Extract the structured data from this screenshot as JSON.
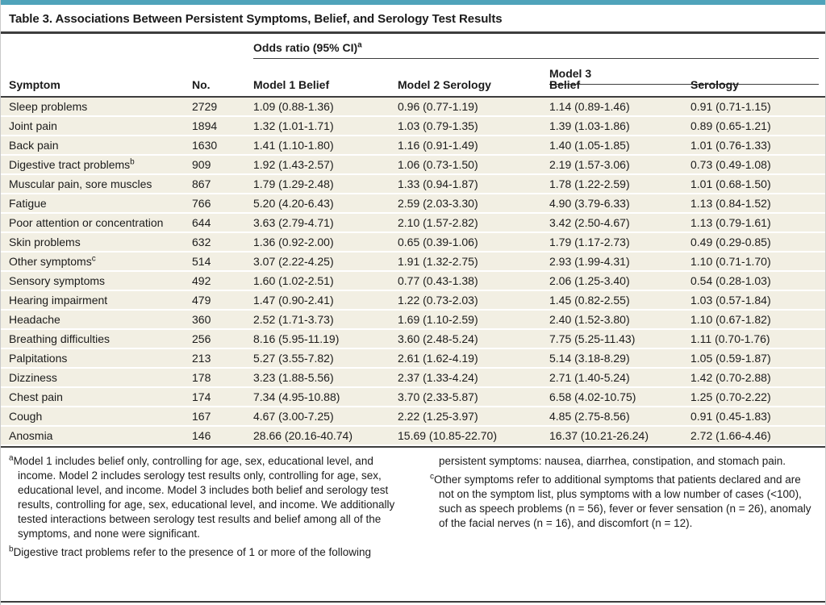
{
  "colors": {
    "accent": "#4FA3BA",
    "row_bg": "#F2EFE3",
    "rule": "#3D3D3D"
  },
  "title": "Table 3. Associations Between Persistent Symptoms, Belief, and Serology Test Results",
  "header": {
    "group1_label": "Odds ratio (95% CI)",
    "group1_sup": "a",
    "group2_label": "Model 3",
    "columns": [
      "Symptom",
      "No.",
      "Model 1 Belief",
      "Model 2 Serology",
      "Belief",
      "Serology"
    ]
  },
  "rows": [
    {
      "symptom": "Sleep problems",
      "sup": "",
      "no": "2729",
      "m1": "1.09 (0.88-1.36)",
      "m2": "0.96 (0.77-1.19)",
      "m3_belief": "1.14 (0.89-1.46)",
      "m3_serology": "0.91 (0.71-1.15)"
    },
    {
      "symptom": "Joint pain",
      "sup": "",
      "no": "1894",
      "m1": "1.32 (1.01-1.71)",
      "m2": "1.03 (0.79-1.35)",
      "m3_belief": "1.39 (1.03-1.86)",
      "m3_serology": "0.89 (0.65-1.21)"
    },
    {
      "symptom": "Back pain",
      "sup": "",
      "no": "1630",
      "m1": "1.41 (1.10-1.80)",
      "m2": "1.16 (0.91-1.49)",
      "m3_belief": "1.40 (1.05-1.85)",
      "m3_serology": "1.01 (0.76-1.33)"
    },
    {
      "symptom": "Digestive tract problems",
      "sup": "b",
      "no": "909",
      "m1": "1.92 (1.43-2.57)",
      "m2": "1.06 (0.73-1.50)",
      "m3_belief": "2.19 (1.57-3.06)",
      "m3_serology": "0.73 (0.49-1.08)"
    },
    {
      "symptom": "Muscular pain, sore muscles",
      "sup": "",
      "no": "867",
      "m1": "1.79 (1.29-2.48)",
      "m2": "1.33 (0.94-1.87)",
      "m3_belief": "1.78 (1.22-2.59)",
      "m3_serology": "1.01 (0.68-1.50)"
    },
    {
      "symptom": "Fatigue",
      "sup": "",
      "no": "766",
      "m1": "5.20 (4.20-6.43)",
      "m2": "2.59 (2.03-3.30)",
      "m3_belief": "4.90 (3.79-6.33)",
      "m3_serology": "1.13 (0.84-1.52)"
    },
    {
      "symptom": "Poor attention or concentration",
      "sup": "",
      "no": "644",
      "m1": "3.63 (2.79-4.71)",
      "m2": "2.10 (1.57-2.82)",
      "m3_belief": "3.42 (2.50-4.67)",
      "m3_serology": "1.13 (0.79-1.61)"
    },
    {
      "symptom": "Skin problems",
      "sup": "",
      "no": "632",
      "m1": "1.36 (0.92-2.00)",
      "m2": "0.65 (0.39-1.06)",
      "m3_belief": "1.79 (1.17-2.73)",
      "m3_serology": "0.49 (0.29-0.85)"
    },
    {
      "symptom": "Other symptoms",
      "sup": "c",
      "no": "514",
      "m1": "3.07 (2.22-4.25)",
      "m2": "1.91 (1.32-2.75)",
      "m3_belief": "2.93 (1.99-4.31)",
      "m3_serology": "1.10 (0.71-1.70)"
    },
    {
      "symptom": "Sensory symptoms",
      "sup": "",
      "no": "492",
      "m1": "1.60 (1.02-2.51)",
      "m2": "0.77 (0.43-1.38)",
      "m3_belief": "2.06 (1.25-3.40)",
      "m3_serology": "0.54 (0.28-1.03)"
    },
    {
      "symptom": "Hearing impairment",
      "sup": "",
      "no": "479",
      "m1": "1.47 (0.90-2.41)",
      "m2": "1.22 (0.73-2.03)",
      "m3_belief": "1.45 (0.82-2.55)",
      "m3_serology": "1.03 (0.57-1.84)"
    },
    {
      "symptom": "Headache",
      "sup": "",
      "no": "360",
      "m1": "2.52 (1.71-3.73)",
      "m2": "1.69 (1.10-2.59)",
      "m3_belief": "2.40 (1.52-3.80)",
      "m3_serology": "1.10 (0.67-1.82)"
    },
    {
      "symptom": "Breathing difficulties",
      "sup": "",
      "no": "256",
      "m1": "8.16 (5.95-11.19)",
      "m2": "3.60 (2.48-5.24)",
      "m3_belief": "7.75 (5.25-11.43)",
      "m3_serology": "1.11 (0.70-1.76)"
    },
    {
      "symptom": "Palpitations",
      "sup": "",
      "no": "213",
      "m1": "5.27 (3.55-7.82)",
      "m2": "2.61 (1.62-4.19)",
      "m3_belief": "5.14 (3.18-8.29)",
      "m3_serology": "1.05 (0.59-1.87)"
    },
    {
      "symptom": "Dizziness",
      "sup": "",
      "no": "178",
      "m1": "3.23 (1.88-5.56)",
      "m2": "2.37 (1.33-4.24)",
      "m3_belief": "2.71 (1.40-5.24)",
      "m3_serology": "1.42 (0.70-2.88)"
    },
    {
      "symptom": "Chest pain",
      "sup": "",
      "no": "174",
      "m1": "7.34 (4.95-10.88)",
      "m2": "3.70 (2.33-5.87)",
      "m3_belief": "6.58 (4.02-10.75)",
      "m3_serology": "1.25 (0.70-2.22)"
    },
    {
      "symptom": "Cough",
      "sup": "",
      "no": "167",
      "m1": "4.67 (3.00-7.25)",
      "m2": "2.22 (1.25-3.97)",
      "m3_belief": "4.85 (2.75-8.56)",
      "m3_serology": "0.91 (0.45-1.83)"
    },
    {
      "symptom": "Anosmia",
      "sup": "",
      "no": "146",
      "m1": "28.66 (20.16-40.74)",
      "m2": "15.69 (10.85-22.70)",
      "m3_belief": "16.37 (10.21-26.24)",
      "m3_serology": "2.72 (1.66-4.46)"
    }
  ],
  "footnotes": {
    "left": [
      {
        "sup": "a",
        "text": "Model 1 includes belief only, controlling for age, sex, educational level, and income. Model 2 includes serology test results only, controlling for age, sex, educational level, and income. Model 3 includes both belief and serology test results, controlling for age, sex, educational level, and income. We additionally tested interactions between serology test results and belief among all of the symptoms, and none were significant."
      },
      {
        "sup": "b",
        "text": "Digestive tract problems refer to the presence of 1 or more of the following"
      }
    ],
    "right": [
      {
        "sup": "",
        "text": "persistent symptoms: nausea, diarrhea, constipation, and stomach pain."
      },
      {
        "sup": "c",
        "text": "Other symptoms refer to additional symptoms that patients declared and are not on the symptom list, plus symptoms with a low number of cases (<100), such as speech problems (n = 56), fever or fever sensation (n = 26), anomaly of the facial nerves (n = 16), and discomfort (n = 12)."
      }
    ]
  }
}
